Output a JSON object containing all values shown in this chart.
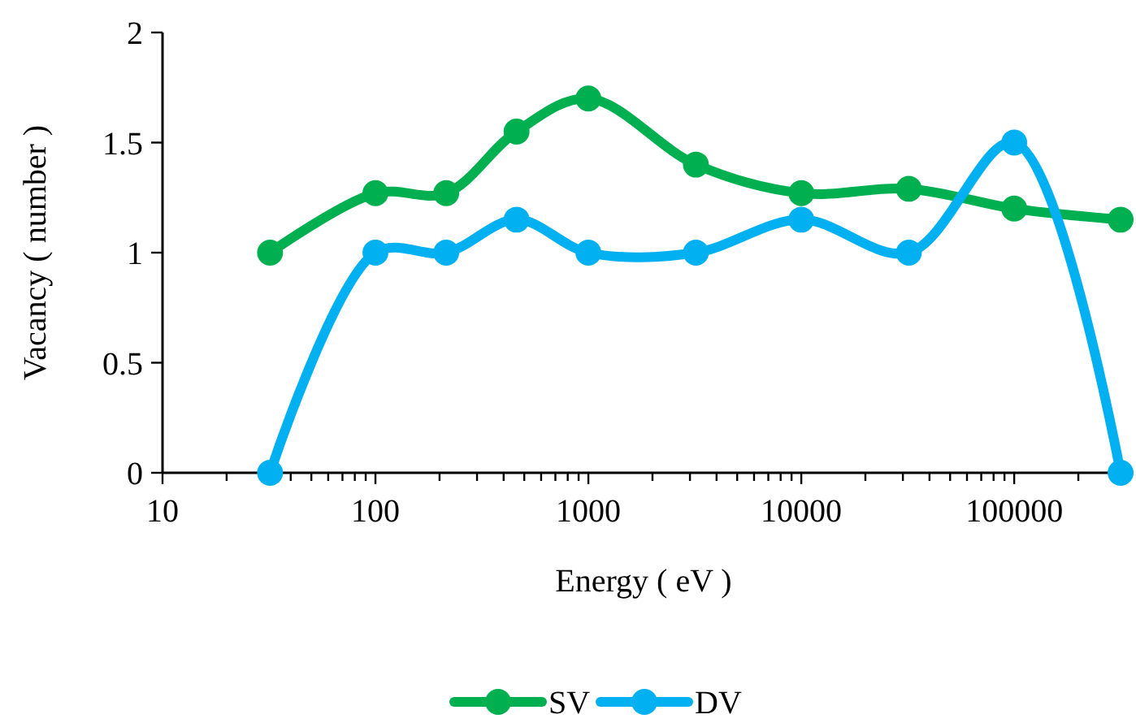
{
  "chart_data": {
    "type": "line",
    "xlabel": "Energy ( eV )",
    "ylabel": "Vacancy ( number )",
    "log": "x",
    "marker": "circle",
    "legend": "bottom",
    "grid": false,
    "x": [
      32,
      100,
      215,
      460,
      1000,
      3200,
      10000,
      32000,
      100000,
      316000
    ],
    "xlim": [
      10,
      330000
    ],
    "xticks": [
      10,
      {
        "value": 20,
        "label": null
      },
      {
        "value": 30,
        "label": null
      },
      {
        "value": 40,
        "label": null
      },
      {
        "value": 50,
        "label": null
      },
      {
        "value": 60,
        "label": null
      },
      {
        "value": 70,
        "label": null
      },
      {
        "value": 80,
        "label": null
      },
      {
        "value": 90,
        "label": null
      },
      100,
      {
        "value": 200,
        "label": null
      },
      {
        "value": 300,
        "label": null
      },
      {
        "value": 400,
        "label": null
      },
      {
        "value": 500,
        "label": null
      },
      {
        "value": 600,
        "label": null
      },
      {
        "value": 700,
        "label": null
      },
      {
        "value": 800,
        "label": null
      },
      {
        "value": 900,
        "label": null
      },
      1000,
      {
        "value": 2000,
        "label": null
      },
      {
        "value": 3000,
        "label": null
      },
      {
        "value": 4000,
        "label": null
      },
      {
        "value": 5000,
        "label": null
      },
      {
        "value": 6000,
        "label": null
      },
      {
        "value": 7000,
        "label": null
      },
      {
        "value": 8000,
        "label": null
      },
      {
        "value": 9000,
        "label": null
      },
      10000,
      {
        "value": 20000,
        "label": null
      },
      {
        "value": 30000,
        "label": null
      },
      {
        "value": 40000,
        "label": null
      },
      {
        "value": 50000,
        "label": null
      },
      {
        "value": 60000,
        "label": null
      },
      {
        "value": 70000,
        "label": null
      },
      {
        "value": 80000,
        "label": null
      },
      {
        "value": 90000,
        "label": null
      },
      100000,
      {
        "value": 200000,
        "label": null
      },
      {
        "value": 300000,
        "label": null
      }
    ],
    "ylim": [
      0,
      2
    ],
    "yticks": [
      0,
      0.5,
      1,
      1.5,
      2
    ],
    "series": [
      {
        "name": "SV",
        "color": "#00b050",
        "values": [
          1.0,
          1.27,
          1.27,
          1.55,
          1.7,
          1.4,
          1.27,
          1.29,
          1.2,
          1.15
        ]
      },
      {
        "name": "DV",
        "color": "#00b0f0",
        "values": [
          0,
          1.0,
          1.0,
          1.15,
          1.0,
          1.0,
          1.15,
          1.0,
          1.5,
          0
        ]
      }
    ]
  }
}
